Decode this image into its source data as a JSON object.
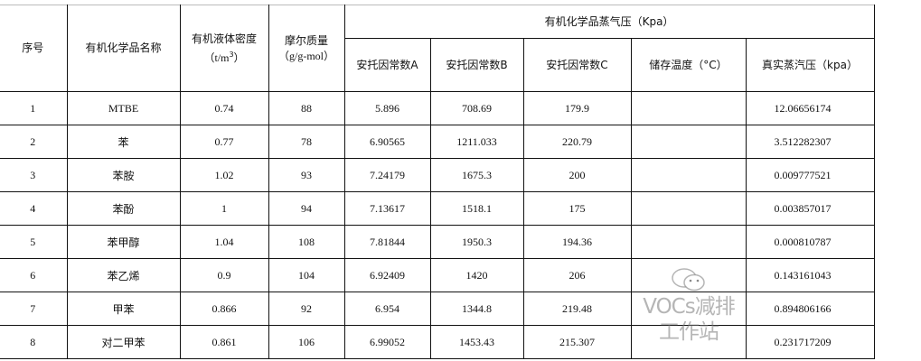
{
  "header": {
    "index": "序号",
    "name": "有机化学品名称",
    "density": "有机液体密度",
    "density_unit": "（t/m",
    "density_sup": "3",
    "density_close": "）",
    "molar_mass": "摩尔质量",
    "molar_mass_unit": "（g/g-mol）",
    "vapor_group": "有机化学品蒸气压（Kpa）",
    "antoine_a": "安托因常数A",
    "antoine_b": "安托因常数B",
    "antoine_c": "安托因常数C",
    "storage_temp": "储存温度（°C）",
    "true_vapor": "真实蒸汽压（kpa）"
  },
  "rows": [
    {
      "index": "1",
      "name": "MTBE",
      "density": "0.74",
      "molar_mass": "88",
      "a": "5.896",
      "b": "708.69",
      "c": "179.9",
      "temp": "",
      "pressure": "12.06656174"
    },
    {
      "index": "2",
      "name": "苯",
      "density": "0.77",
      "molar_mass": "78",
      "a": "6.90565",
      "b": "1211.033",
      "c": "220.79",
      "temp": "",
      "pressure": "3.512282307"
    },
    {
      "index": "3",
      "name": "苯胺",
      "density": "1.02",
      "molar_mass": "93",
      "a": "7.24179",
      "b": "1675.3",
      "c": "200",
      "temp": "",
      "pressure": "0.009777521"
    },
    {
      "index": "4",
      "name": "苯酚",
      "density": "1",
      "molar_mass": "94",
      "a": "7.13617",
      "b": "1518.1",
      "c": "175",
      "temp": "",
      "pressure": "0.003857017"
    },
    {
      "index": "5",
      "name": "苯甲醇",
      "density": "1.04",
      "molar_mass": "108",
      "a": "7.81844",
      "b": "1950.3",
      "c": "194.36",
      "temp": "",
      "pressure": "0.000810787"
    },
    {
      "index": "6",
      "name": "苯乙烯",
      "density": "0.9",
      "molar_mass": "104",
      "a": "6.92409",
      "b": "1420",
      "c": "206",
      "temp": "",
      "pressure": "0.143161043"
    },
    {
      "index": "7",
      "name": "甲苯",
      "density": "0.866",
      "molar_mass": "92",
      "a": "6.954",
      "b": "1344.8",
      "c": "219.48",
      "temp": "",
      "pressure": "0.894806166"
    },
    {
      "index": "8",
      "name": "对二甲苯",
      "density": "0.861",
      "molar_mass": "106",
      "a": "6.99052",
      "b": "1453.43",
      "c": "215.307",
      "temp": "",
      "pressure": "0.231717209"
    }
  ],
  "watermark": {
    "text": "VOCs减排工作站",
    "icon": "wechat-icon"
  }
}
